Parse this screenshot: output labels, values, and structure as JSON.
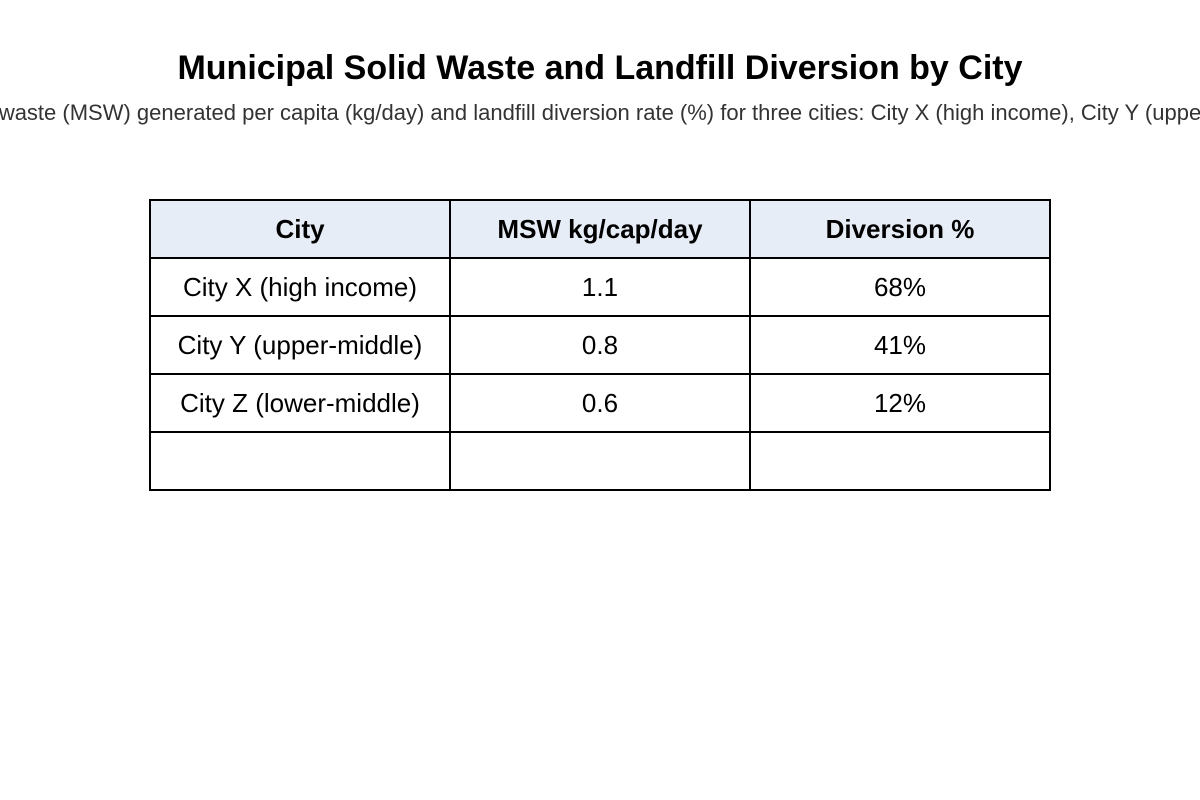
{
  "chart_data": {
    "type": "table",
    "title": "Municipal Solid Waste and Landfill Diversion by City",
    "subtitle": "waste (MSW) generated per capita (kg/day) and landfill diversion rate (%) for three cities: City X (high income), City Y (uppe",
    "columns": [
      "City",
      "MSW kg/cap/day",
      "Diversion %"
    ],
    "rows": [
      [
        "City X (high income)",
        "1.1",
        "68%"
      ],
      [
        "City Y (upper-middle)",
        "0.8",
        "41%"
      ],
      [
        "City Z (lower-middle)",
        "0.6",
        "12%"
      ],
      [
        "",
        "",
        ""
      ]
    ],
    "header_color": "#e7edf6"
  }
}
